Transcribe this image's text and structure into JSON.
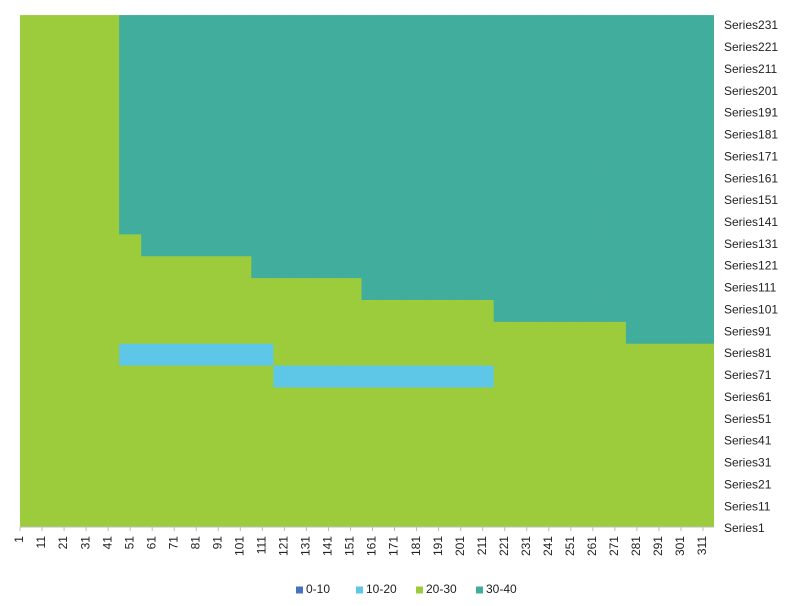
{
  "chart_data": {
    "type": "surface",
    "categories": [
      "1",
      "11",
      "21",
      "31",
      "41",
      "51",
      "61",
      "71",
      "81",
      "91",
      "101",
      "111",
      "121",
      "131",
      "141",
      "151",
      "161",
      "171",
      "181",
      "191",
      "201",
      "211",
      "221",
      "231",
      "241",
      "251",
      "261",
      "271",
      "281",
      "291",
      "301",
      "311"
    ],
    "bands": [
      {
        "label": "0-10",
        "range": [
          0,
          10
        ],
        "color": "#4472c4"
      },
      {
        "label": "10-20",
        "range": [
          10,
          20
        ],
        "color": "#5ec6e6"
      },
      {
        "label": "20-30",
        "range": [
          20,
          30
        ],
        "color": "#9ccc3c"
      },
      {
        "label": "30-40",
        "range": [
          30,
          40
        ],
        "color": "#41ad9c"
      }
    ],
    "series": [
      {
        "name": "Series1",
        "values": [
          25,
          25,
          25,
          25,
          25,
          25,
          25,
          25,
          25,
          25,
          25,
          25,
          25,
          25,
          25,
          25,
          25,
          25,
          25,
          25,
          25,
          25,
          25,
          25,
          25,
          25,
          25,
          25,
          25,
          25,
          25,
          25
        ]
      },
      {
        "name": "Series11",
        "values": [
          25,
          25,
          25,
          25,
          25,
          25,
          25,
          25,
          25,
          25,
          25,
          25,
          25,
          25,
          25,
          25,
          25,
          25,
          25,
          25,
          25,
          25,
          25,
          25,
          25,
          25,
          25,
          25,
          25,
          25,
          25,
          25
        ]
      },
      {
        "name": "Series21",
        "values": [
          25,
          25,
          25,
          25,
          25,
          25,
          25,
          25,
          25,
          25,
          25,
          25,
          25,
          25,
          25,
          25,
          25,
          25,
          25,
          25,
          25,
          25,
          25,
          25,
          25,
          25,
          25,
          25,
          25,
          25,
          25,
          25
        ]
      },
      {
        "name": "Series31",
        "values": [
          25,
          25,
          25,
          25,
          25,
          25,
          25,
          25,
          25,
          25,
          25,
          25,
          25,
          25,
          25,
          25,
          25,
          25,
          25,
          25,
          25,
          25,
          25,
          25,
          25,
          25,
          25,
          25,
          25,
          25,
          25,
          25
        ]
      },
      {
        "name": "Series41",
        "values": [
          25,
          25,
          25,
          25,
          25,
          25,
          25,
          25,
          25,
          25,
          25,
          25,
          25,
          25,
          25,
          25,
          25,
          25,
          25,
          25,
          25,
          25,
          25,
          25,
          25,
          25,
          25,
          25,
          25,
          25,
          25,
          25
        ]
      },
      {
        "name": "Series51",
        "values": [
          25,
          25,
          25,
          25,
          25,
          25,
          25,
          25,
          25,
          25,
          25,
          25,
          25,
          25,
          25,
          25,
          25,
          25,
          25,
          25,
          25,
          25,
          25,
          25,
          25,
          25,
          25,
          25,
          25,
          25,
          25,
          25
        ]
      },
      {
        "name": "Series61",
        "values": [
          25,
          25,
          25,
          25,
          25,
          25,
          25,
          25,
          25,
          25,
          25,
          25,
          25,
          25,
          25,
          25,
          25,
          25,
          25,
          25,
          25,
          25,
          25,
          25,
          25,
          25,
          25,
          25,
          25,
          25,
          25,
          25
        ]
      },
      {
        "name": "Series71",
        "values": [
          25,
          25,
          25,
          25,
          25,
          25,
          25,
          25,
          25,
          25,
          25,
          25,
          15,
          15,
          15,
          15,
          15,
          15,
          15,
          15,
          15,
          15,
          25,
          25,
          25,
          25,
          25,
          25,
          25,
          25,
          25,
          25
        ]
      },
      {
        "name": "Series81",
        "values": [
          25,
          25,
          25,
          25,
          25,
          15,
          15,
          15,
          15,
          15,
          15,
          15,
          25,
          25,
          25,
          25,
          25,
          25,
          25,
          25,
          25,
          25,
          25,
          25,
          25,
          25,
          25,
          25,
          25,
          25,
          25,
          25
        ]
      },
      {
        "name": "Series91",
        "values": [
          25,
          25,
          25,
          25,
          25,
          25,
          25,
          25,
          25,
          25,
          25,
          25,
          25,
          25,
          25,
          25,
          25,
          25,
          25,
          25,
          25,
          25,
          25,
          25,
          25,
          25,
          25,
          25,
          35,
          35,
          35,
          35
        ]
      },
      {
        "name": "Series101",
        "values": [
          25,
          25,
          25,
          25,
          25,
          25,
          25,
          25,
          25,
          25,
          25,
          25,
          25,
          25,
          25,
          25,
          25,
          25,
          25,
          25,
          25,
          25,
          35,
          35,
          35,
          35,
          35,
          35,
          35,
          35,
          35,
          35
        ]
      },
      {
        "name": "Series111",
        "values": [
          25,
          25,
          25,
          25,
          25,
          25,
          25,
          25,
          25,
          25,
          25,
          25,
          25,
          25,
          25,
          25,
          35,
          35,
          35,
          35,
          35,
          35,
          35,
          35,
          35,
          35,
          35,
          35,
          35,
          35,
          35,
          35
        ]
      },
      {
        "name": "Series121",
        "values": [
          25,
          25,
          25,
          25,
          25,
          25,
          25,
          25,
          25,
          25,
          25,
          35,
          35,
          35,
          35,
          35,
          35,
          35,
          35,
          35,
          35,
          35,
          35,
          35,
          35,
          35,
          35,
          35,
          35,
          35,
          35,
          35
        ]
      },
      {
        "name": "Series131",
        "values": [
          25,
          25,
          25,
          25,
          25,
          25,
          35,
          35,
          35,
          35,
          35,
          35,
          35,
          35,
          35,
          35,
          35,
          35,
          35,
          35,
          35,
          35,
          35,
          35,
          35,
          35,
          35,
          35,
          35,
          35,
          35,
          35
        ]
      },
      {
        "name": "Series141",
        "values": [
          25,
          25,
          25,
          25,
          25,
          35,
          35,
          35,
          35,
          35,
          35,
          35,
          35,
          35,
          35,
          35,
          35,
          35,
          35,
          35,
          35,
          35,
          35,
          35,
          35,
          35,
          35,
          35,
          35,
          35,
          35,
          35
        ]
      },
      {
        "name": "Series151",
        "values": [
          25,
          25,
          25,
          25,
          25,
          35,
          35,
          35,
          35,
          35,
          35,
          35,
          35,
          35,
          35,
          35,
          35,
          35,
          35,
          35,
          35,
          35,
          35,
          35,
          35,
          35,
          35,
          35,
          35,
          35,
          35,
          35
        ]
      },
      {
        "name": "Series161",
        "values": [
          25,
          25,
          25,
          25,
          25,
          35,
          35,
          35,
          35,
          35,
          35,
          35,
          35,
          35,
          35,
          35,
          35,
          35,
          35,
          35,
          35,
          35,
          35,
          35,
          35,
          35,
          35,
          35,
          35,
          35,
          35,
          35
        ]
      },
      {
        "name": "Series171",
        "values": [
          25,
          25,
          25,
          25,
          25,
          35,
          35,
          35,
          35,
          35,
          35,
          35,
          35,
          35,
          35,
          35,
          35,
          35,
          35,
          35,
          35,
          35,
          35,
          35,
          35,
          35,
          35,
          35,
          35,
          35,
          35,
          35
        ]
      },
      {
        "name": "Series181",
        "values": [
          25,
          25,
          25,
          25,
          25,
          35,
          35,
          35,
          35,
          35,
          35,
          35,
          35,
          35,
          35,
          35,
          35,
          35,
          35,
          35,
          35,
          35,
          35,
          35,
          35,
          35,
          35,
          35,
          35,
          35,
          35,
          35
        ]
      },
      {
        "name": "Series191",
        "values": [
          25,
          25,
          25,
          25,
          25,
          35,
          35,
          35,
          35,
          35,
          35,
          35,
          35,
          35,
          35,
          35,
          35,
          35,
          35,
          35,
          35,
          35,
          35,
          35,
          35,
          35,
          35,
          35,
          35,
          35,
          35,
          35
        ]
      },
      {
        "name": "Series201",
        "values": [
          25,
          25,
          25,
          25,
          25,
          35,
          35,
          35,
          35,
          35,
          35,
          35,
          35,
          35,
          35,
          35,
          35,
          35,
          35,
          35,
          35,
          35,
          35,
          35,
          35,
          35,
          35,
          35,
          35,
          35,
          35,
          35
        ]
      },
      {
        "name": "Series211",
        "values": [
          25,
          25,
          25,
          25,
          25,
          35,
          35,
          35,
          35,
          35,
          35,
          35,
          35,
          35,
          35,
          35,
          35,
          35,
          35,
          35,
          35,
          35,
          35,
          35,
          35,
          35,
          35,
          35,
          35,
          35,
          35,
          35
        ]
      },
      {
        "name": "Series221",
        "values": [
          25,
          25,
          25,
          25,
          25,
          35,
          35,
          35,
          35,
          35,
          35,
          35,
          35,
          35,
          35,
          35,
          35,
          35,
          35,
          35,
          35,
          35,
          35,
          35,
          35,
          35,
          35,
          35,
          35,
          35,
          35,
          35
        ]
      },
      {
        "name": "Series231",
        "values": [
          25,
          25,
          25,
          25,
          25,
          35,
          35,
          35,
          35,
          35,
          35,
          35,
          35,
          35,
          35,
          35,
          35,
          35,
          35,
          35,
          35,
          35,
          35,
          35,
          35,
          35,
          35,
          35,
          35,
          35,
          35,
          35
        ]
      }
    ]
  }
}
